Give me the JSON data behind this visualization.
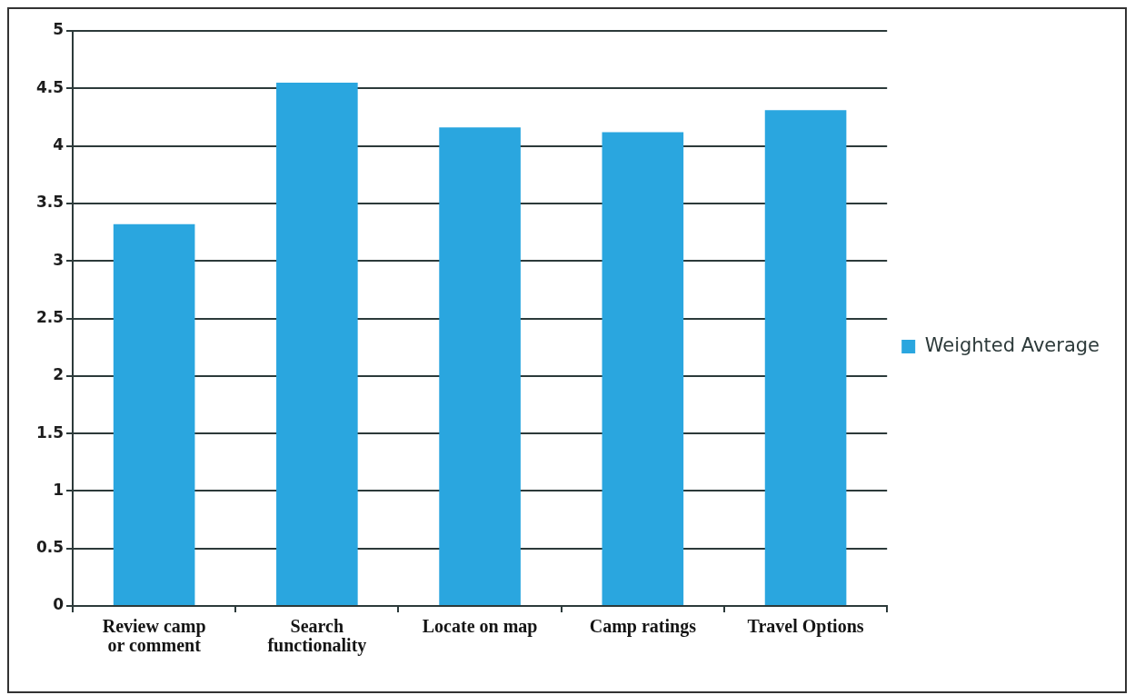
{
  "chart_data": {
    "type": "bar",
    "categories": [
      "Review camp or comment",
      "Search functionality",
      "Locate on map",
      "Camp ratings",
      "Travel Options"
    ],
    "series": [
      {
        "name": "Weighted Average",
        "color": "#2aa6df",
        "values": [
          3.32,
          4.55,
          4.16,
          4.12,
          4.31
        ]
      }
    ],
    "ylim": [
      0,
      5
    ],
    "yticks": [
      0,
      0.5,
      1,
      1.5,
      2,
      2.5,
      3,
      3.5,
      4,
      4.5,
      5
    ],
    "grid": "y",
    "legend": "right"
  }
}
